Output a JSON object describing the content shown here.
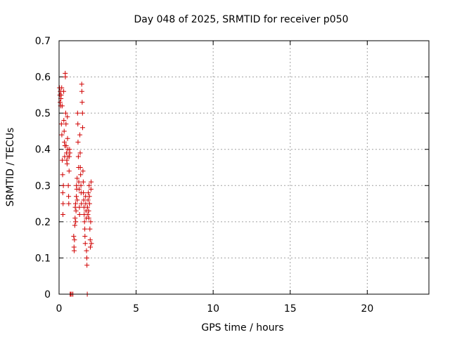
{
  "chart_data": {
    "type": "scatter",
    "title": "Day 048 of 2025, SRMTID for receiver p050",
    "xlabel": "GPS time / hours",
    "ylabel": "SRMTID / TECUs",
    "xlim": [
      0,
      24
    ],
    "ylim": [
      0,
      0.7
    ],
    "xticks": [
      0,
      5,
      10,
      15,
      20
    ],
    "yticks": [
      0,
      0.1,
      0.2,
      0.3,
      0.4,
      0.5,
      0.6,
      0.7
    ],
    "xtick_labels": [
      "0",
      "5",
      "10",
      "15",
      "20"
    ],
    "ytick_labels": [
      "0",
      "0.1",
      "0.2",
      "0.3",
      "0.4",
      "0.5",
      "0.6",
      "0.7"
    ],
    "grid": true,
    "marker": "+",
    "color": "#d00000",
    "points": [
      [
        0.03,
        0.57
      ],
      [
        0.05,
        0.55
      ],
      [
        0.07,
        0.53
      ],
      [
        0.08,
        0.56
      ],
      [
        0.1,
        0.52
      ],
      [
        0.12,
        0.54
      ],
      [
        0.14,
        0.55
      ],
      [
        0.15,
        0.47
      ],
      [
        0.17,
        0.57
      ],
      [
        0.18,
        0.44
      ],
      [
        0.2,
        0.52
      ],
      [
        0.21,
        0.37
      ],
      [
        0.23,
        0.33
      ],
      [
        0.24,
        0.28
      ],
      [
        0.25,
        0.22
      ],
      [
        0.26,
        0.25
      ],
      [
        0.28,
        0.3
      ],
      [
        0.3,
        0.56
      ],
      [
        0.31,
        0.48
      ],
      [
        0.33,
        0.45
      ],
      [
        0.35,
        0.42
      ],
      [
        0.36,
        0.38
      ],
      [
        0.38,
        0.41
      ],
      [
        0.4,
        0.61
      ],
      [
        0.41,
        0.6
      ],
      [
        0.43,
        0.5
      ],
      [
        0.45,
        0.47
      ],
      [
        0.46,
        0.41
      ],
      [
        0.48,
        0.39
      ],
      [
        0.5,
        0.37
      ],
      [
        0.52,
        0.36
      ],
      [
        0.54,
        0.49
      ],
      [
        0.55,
        0.43
      ],
      [
        0.57,
        0.4
      ],
      [
        0.58,
        0.38
      ],
      [
        0.6,
        0.3
      ],
      [
        0.62,
        0.27
      ],
      [
        0.63,
        0.25
      ],
      [
        0.65,
        0.34
      ],
      [
        0.67,
        0.38
      ],
      [
        0.68,
        0.4
      ],
      [
        0.7,
        0.39
      ],
      [
        0.72,
        0.0
      ],
      [
        0.75,
        0.0
      ],
      [
        0.82,
        0.0
      ],
      [
        0.9,
        0.0
      ],
      [
        0.95,
        0.16
      ],
      [
        0.97,
        0.13
      ],
      [
        0.98,
        0.12
      ],
      [
        1.0,
        0.15
      ],
      [
        1.02,
        0.19
      ],
      [
        1.04,
        0.21
      ],
      [
        1.05,
        0.24
      ],
      [
        1.07,
        0.25
      ],
      [
        1.08,
        0.2
      ],
      [
        1.1,
        0.23
      ],
      [
        1.12,
        0.27
      ],
      [
        1.13,
        0.3
      ],
      [
        1.15,
        0.29
      ],
      [
        1.17,
        0.32
      ],
      [
        1.18,
        0.26
      ],
      [
        1.2,
        0.5
      ],
      [
        1.22,
        0.47
      ],
      [
        1.23,
        0.42
      ],
      [
        1.25,
        0.38
      ],
      [
        1.27,
        0.35
      ],
      [
        1.28,
        0.31
      ],
      [
        1.3,
        0.29
      ],
      [
        1.32,
        0.24
      ],
      [
        1.33,
        0.22
      ],
      [
        1.35,
        0.44
      ],
      [
        1.37,
        0.39
      ],
      [
        1.38,
        0.35
      ],
      [
        1.4,
        0.33
      ],
      [
        1.42,
        0.3
      ],
      [
        1.43,
        0.28
      ],
      [
        1.45,
        0.25
      ],
      [
        1.47,
        0.58
      ],
      [
        1.48,
        0.56
      ],
      [
        1.5,
        0.53
      ],
      [
        1.52,
        0.5
      ],
      [
        1.53,
        0.46
      ],
      [
        1.55,
        0.34
      ],
      [
        1.57,
        0.31
      ],
      [
        1.58,
        0.28
      ],
      [
        1.6,
        0.26
      ],
      [
        1.62,
        0.24
      ],
      [
        1.63,
        0.22
      ],
      [
        1.65,
        0.2
      ],
      [
        1.67,
        0.18
      ],
      [
        1.68,
        0.16
      ],
      [
        1.7,
        0.14
      ],
      [
        1.72,
        0.27
      ],
      [
        1.73,
        0.25
      ],
      [
        1.75,
        0.23
      ],
      [
        1.77,
        0.21
      ],
      [
        1.78,
        0.12
      ],
      [
        1.8,
        0.1
      ],
      [
        1.81,
        0.08
      ],
      [
        1.83,
        0.0
      ],
      [
        1.85,
        0.24
      ],
      [
        1.87,
        0.22
      ],
      [
        1.88,
        0.26
      ],
      [
        1.9,
        0.28
      ],
      [
        1.92,
        0.23
      ],
      [
        1.93,
        0.21
      ],
      [
        1.95,
        0.3
      ],
      [
        1.97,
        0.27
      ],
      [
        1.98,
        0.25
      ],
      [
        2.0,
        0.18
      ],
      [
        2.02,
        0.15
      ],
      [
        2.03,
        0.13
      ],
      [
        2.05,
        0.2
      ],
      [
        2.07,
        0.29
      ],
      [
        2.08,
        0.31
      ],
      [
        2.1,
        0.14
      ]
    ]
  }
}
